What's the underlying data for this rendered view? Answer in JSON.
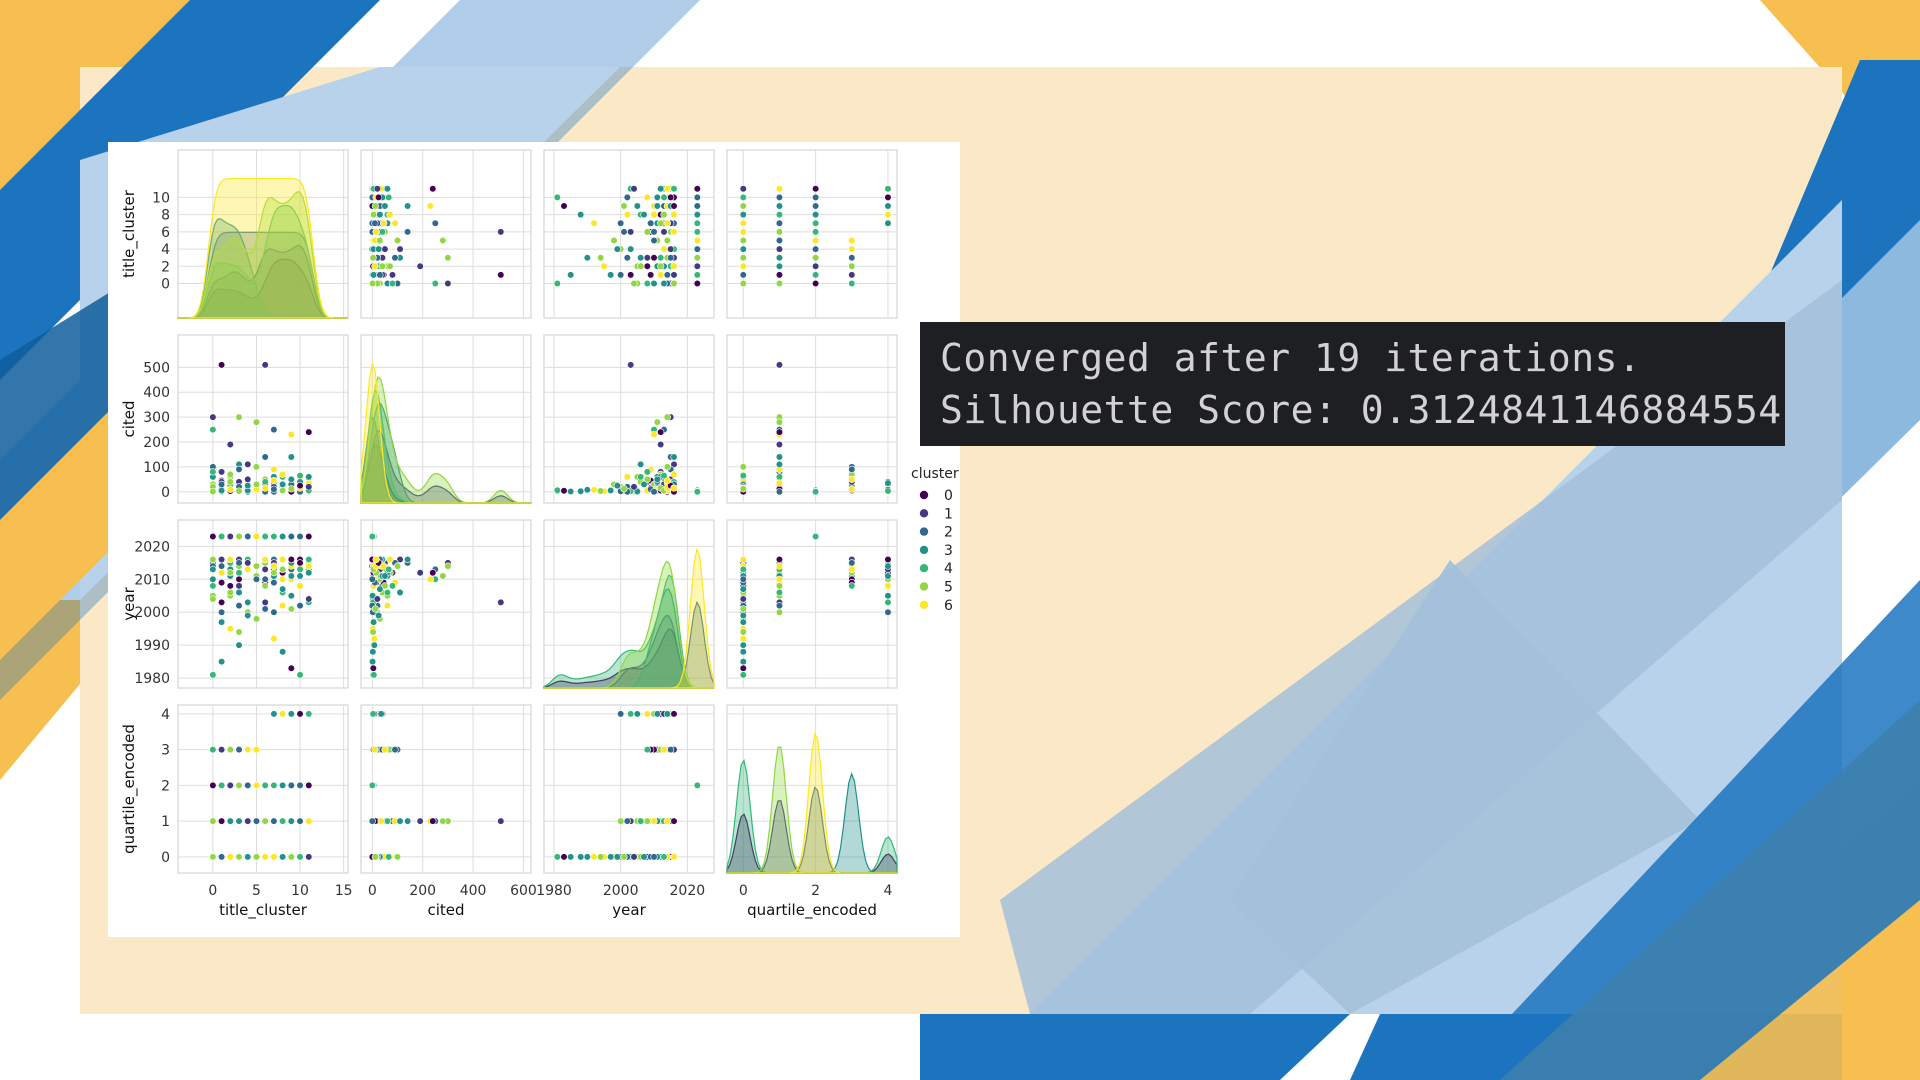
{
  "console": {
    "line1": "Converged after 19 iterations.",
    "line2": "Silhouette Score: 0.3124841146884554"
  },
  "chart_data": {
    "type": "scatter",
    "subtype": "pairplot",
    "variables": [
      "title_cluster",
      "cited",
      "year",
      "quartile_encoded"
    ],
    "axis_labels": {
      "title_cluster": "title_cluster",
      "cited": "cited",
      "year": "year",
      "quartile_encoded": "quartile_encoded"
    },
    "limits": {
      "title_cluster": [
        -4,
        15.5
      ],
      "cited": [
        -45,
        630
      ],
      "year": [
        1977,
        2028
      ],
      "quartile_encoded": [
        -0.45,
        4.25
      ]
    },
    "ticks": {
      "title_cluster": [
        0,
        2,
        4,
        6,
        8,
        10
      ],
      "cited": [
        0,
        100,
        200,
        300,
        400,
        500
      ],
      "year": [
        1980,
        1990,
        2000,
        2010,
        2020
      ],
      "quartile_encoded": [
        0,
        1,
        2,
        3,
        4
      ]
    },
    "bottom_ticks": {
      "title_cluster": [
        0,
        5,
        10,
        15
      ],
      "cited": [
        0,
        200,
        400,
        600
      ],
      "year": [
        1980,
        2000,
        2020
      ],
      "quartile_encoded": [
        0,
        2,
        4
      ]
    },
    "legend": {
      "title": "cluster",
      "labels": [
        "0",
        "1",
        "2",
        "3",
        "4",
        "5",
        "6"
      ],
      "position": "right"
    },
    "palette": [
      "#440154",
      "#443983",
      "#31688e",
      "#21918c",
      "#35b779",
      "#90d743",
      "#fde725"
    ],
    "points": [
      [
        0,
        0,
        2023,
        2
      ],
      [
        1,
        5,
        2023,
        2
      ],
      [
        2,
        3,
        2023,
        2
      ],
      [
        3,
        1,
        2023,
        2
      ],
      [
        4,
        0,
        2023,
        2
      ],
      [
        5,
        4,
        2023,
        2
      ],
      [
        7,
        0,
        2023,
        2
      ],
      [
        9,
        6,
        2023,
        2
      ],
      [
        11,
        0,
        2023,
        2
      ],
      [
        10,
        2,
        2023,
        2
      ],
      [
        8,
        1,
        2023,
        2
      ],
      [
        6,
        0,
        2023,
        2
      ],
      [
        0,
        300,
        2015,
        1
      ],
      [
        0,
        250,
        2010,
        1
      ],
      [
        1,
        80,
        2012,
        1
      ],
      [
        2,
        60,
        2005,
        1
      ],
      [
        2,
        190,
        2012,
        1
      ],
      [
        3,
        300,
        2014,
        1
      ],
      [
        3,
        40,
        2008,
        1
      ],
      [
        4,
        20,
        2000,
        1
      ],
      [
        4,
        110,
        2016,
        1
      ],
      [
        5,
        280,
        2011,
        1
      ],
      [
        6,
        140,
        2015,
        1
      ],
      [
        7,
        90,
        2009,
        1
      ],
      [
        7,
        250,
        2013,
        1
      ],
      [
        8,
        60,
        2002,
        1
      ],
      [
        9,
        140,
        2016,
        1
      ],
      [
        9,
        230,
        2010,
        1
      ],
      [
        10,
        20,
        2014,
        1
      ],
      [
        11,
        240,
        2012,
        1
      ],
      [
        1,
        510,
        2003,
        1
      ],
      [
        6,
        510,
        2003,
        1
      ],
      [
        0,
        30,
        2016,
        1
      ],
      [
        2,
        15,
        2013,
        1
      ],
      [
        5,
        10,
        2010,
        1
      ],
      [
        3,
        110,
        2006,
        1
      ],
      [
        10,
        50,
        2015,
        1
      ],
      [
        0,
        10,
        2016,
        3
      ],
      [
        0,
        100,
        2014,
        3
      ],
      [
        1,
        20,
        2012,
        3
      ],
      [
        2,
        5,
        2011,
        3
      ],
      [
        3,
        15,
        2010,
        3
      ],
      [
        4,
        30,
        2016,
        3
      ],
      [
        0,
        60,
        2013,
        3
      ],
      [
        1,
        45,
        2009,
        3
      ],
      [
        2,
        25,
        2015,
        3
      ],
      [
        3,
        5,
        2016,
        3
      ],
      [
        5,
        10,
        2014,
        3
      ],
      [
        0,
        80,
        2008,
        3
      ],
      [
        1,
        40,
        2016,
        3
      ],
      [
        2,
        70,
        2012,
        3
      ],
      [
        3,
        90,
        2015,
        3
      ],
      [
        4,
        50,
        2013,
        3
      ],
      [
        0,
        5,
        2005,
        0
      ],
      [
        1,
        10,
        2000,
        0
      ],
      [
        2,
        2,
        1995,
        0
      ],
      [
        3,
        8,
        1990,
        0
      ],
      [
        0,
        15,
        2010,
        0
      ],
      [
        4,
        5,
        2003,
        0
      ],
      [
        1,
        1,
        1985,
        0
      ],
      [
        2,
        3,
        2008,
        0
      ],
      [
        3,
        12,
        2012,
        0
      ],
      [
        0,
        2,
        1981,
        0
      ],
      [
        5,
        30,
        1998,
        0
      ],
      [
        6,
        5,
        2001,
        0
      ],
      [
        7,
        8,
        1992,
        0
      ],
      [
        8,
        2,
        1988,
        0
      ],
      [
        9,
        4,
        1983,
        0
      ],
      [
        10,
        6,
        1981,
        0
      ],
      [
        4,
        50,
        2015,
        0
      ],
      [
        5,
        100,
        2014,
        0
      ],
      [
        2,
        40,
        2006,
        0
      ],
      [
        3,
        20,
        2002,
        0
      ],
      [
        1,
        5,
        1997,
        0
      ],
      [
        0,
        20,
        2016,
        0
      ],
      [
        6,
        15,
        2009,
        0
      ],
      [
        8,
        3,
        2016,
        0
      ],
      [
        9,
        10,
        2013,
        0
      ],
      [
        7,
        60,
        2011,
        0
      ],
      [
        4,
        25,
        1999,
        0
      ],
      [
        3,
        3,
        1994,
        0
      ],
      [
        0,
        1,
        2004,
        0
      ],
      [
        1,
        30,
        2014,
        0
      ],
      [
        2,
        10,
        2016,
        0
      ],
      [
        7,
        0,
        2014,
        4
      ],
      [
        7,
        10,
        2016,
        4
      ],
      [
        8,
        5,
        2012,
        4
      ],
      [
        9,
        15,
        2016,
        4
      ],
      [
        10,
        20,
        2013,
        4
      ],
      [
        11,
        10,
        2015,
        4
      ],
      [
        8,
        30,
        2010,
        4
      ],
      [
        9,
        40,
        2016,
        4
      ],
      [
        10,
        5,
        2008,
        4
      ],
      [
        11,
        25,
        2014,
        4
      ],
      [
        7,
        2,
        2000,
        4
      ],
      [
        8,
        12,
        2016,
        4
      ],
      [
        9,
        1,
        2005,
        4
      ],
      [
        10,
        8,
        2016,
        4
      ],
      [
        11,
        3,
        2003,
        4
      ],
      [
        7,
        35,
        2011,
        4
      ],
      [
        6,
        5,
        2015,
        1
      ],
      [
        6,
        30,
        2013,
        1
      ],
      [
        7,
        15,
        2012,
        1
      ],
      [
        8,
        20,
        2016,
        1
      ],
      [
        9,
        5,
        2014,
        1
      ],
      [
        10,
        40,
        2011,
        1
      ],
      [
        11,
        10,
        2016,
        1
      ],
      [
        6,
        50,
        2008,
        1
      ],
      [
        7,
        0,
        2016,
        1
      ],
      [
        8,
        8,
        2010,
        1
      ],
      [
        9,
        30,
        2015,
        1
      ],
      [
        10,
        12,
        2016,
        1
      ],
      [
        11,
        55,
        2013,
        1
      ],
      [
        8,
        60,
        2006,
        1
      ],
      [
        10,
        0,
        2002,
        1
      ],
      [
        11,
        35,
        2014,
        1
      ],
      [
        6,
        40,
        2016,
        0
      ],
      [
        7,
        20,
        2015,
        0
      ],
      [
        8,
        5,
        2013,
        0
      ],
      [
        9,
        30,
        2016,
        0
      ],
      [
        10,
        15,
        2014,
        0
      ],
      [
        11,
        60,
        2012,
        0
      ],
      [
        7,
        10,
        2009,
        0
      ],
      [
        8,
        70,
        2016,
        0
      ],
      [
        9,
        50,
        2011,
        0
      ],
      [
        10,
        25,
        2015,
        0
      ],
      [
        11,
        5,
        2016,
        0
      ],
      [
        6,
        0,
        2010,
        0
      ],
      [
        7,
        45,
        2014,
        0
      ],
      [
        8,
        30,
        2007,
        0
      ],
      [
        9,
        0,
        2016,
        0
      ],
      [
        10,
        65,
        2013,
        0
      ],
      [
        11,
        20,
        2004,
        0
      ],
      [
        6,
        15,
        2016,
        0
      ],
      [
        9,
        12,
        2001,
        0
      ]
    ],
    "diag_density_note": "diagonal shows per-cluster KDE curves"
  }
}
